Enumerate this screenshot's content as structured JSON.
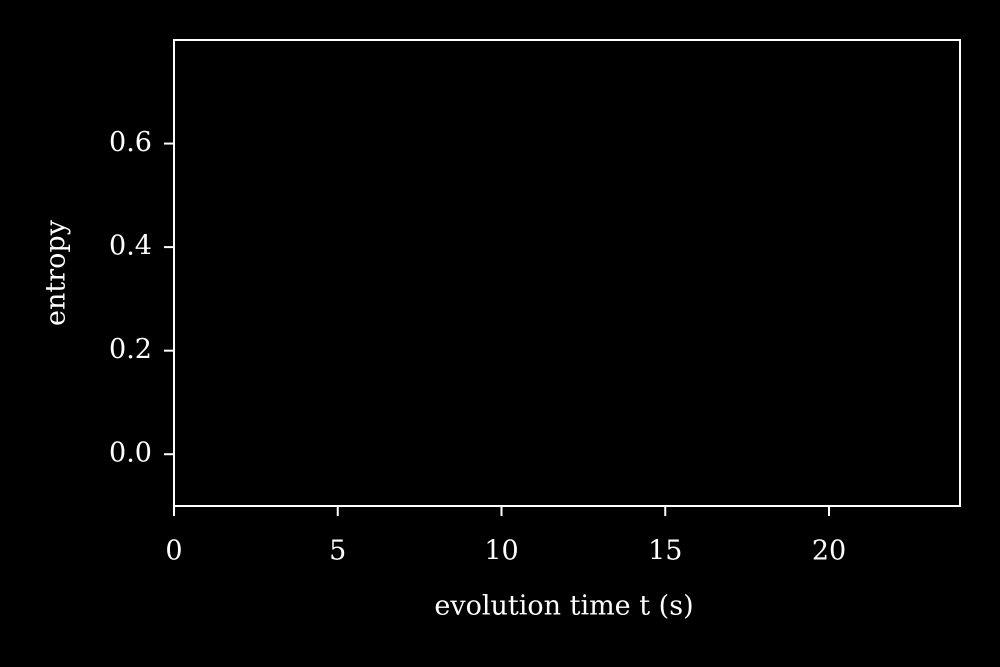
{
  "chart_data": {
    "type": "line",
    "xlabel": "evolution time t (s)",
    "ylabel": "entropy",
    "xlim": [
      0,
      24
    ],
    "ylim": [
      -0.1,
      0.8
    ],
    "xticks": [
      0,
      5,
      10,
      15,
      20
    ],
    "yticks": [
      {
        "value": 0,
        "label": "0.0"
      },
      0.2,
      0.4,
      0.6
    ],
    "grid": false,
    "color": "#ffffff"
  }
}
